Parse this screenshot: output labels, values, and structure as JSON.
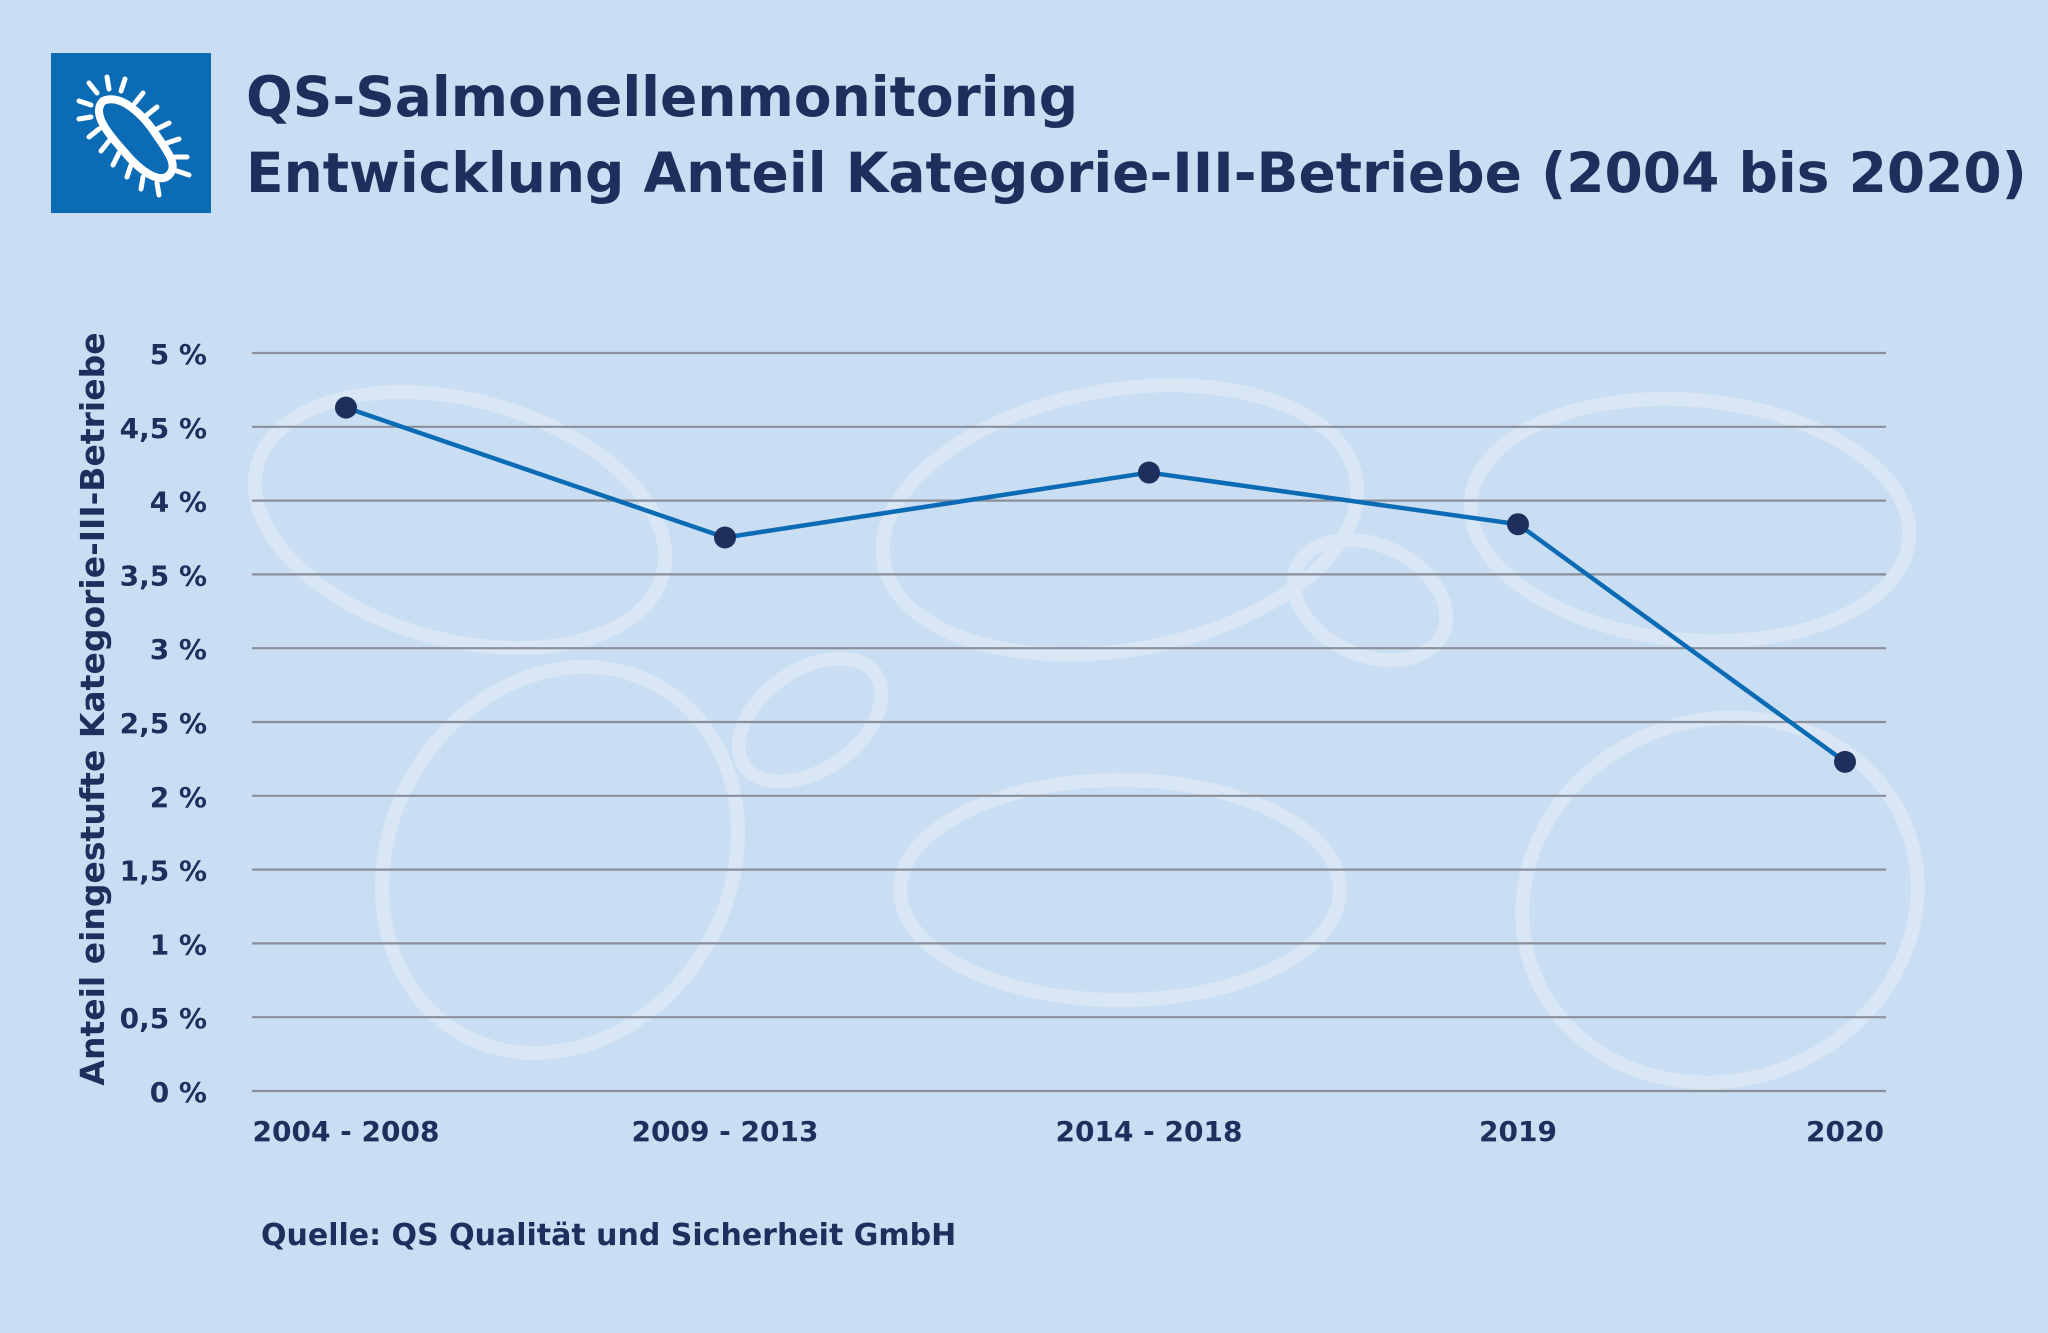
{
  "header": {
    "title_line1": "QS-Salmonellenmonitoring",
    "title_line2": "Entwicklung Anteil Kategorie-III-Betriebe (2004 bis 2020)",
    "logo_icon": "salmonella-bacterium-icon"
  },
  "colors": {
    "background": "#c9def2",
    "logo_background": "#0b6bb5",
    "line": "#0b6bb5",
    "marker": "#1d2f5c",
    "text": "#1d2f5c",
    "gridline": "#8a8f99"
  },
  "chart_data": {
    "type": "line",
    "title": "",
    "xlabel": "",
    "ylabel": "Anteil eingestufte Kategorie-III-Betriebe",
    "categories": [
      "2004 - 2008",
      "2009 - 2013",
      "2014 - 2018",
      "2019",
      "2020"
    ],
    "series": [
      {
        "values": [
          4.63,
          3.75,
          4.19,
          3.84,
          2.23
        ]
      }
    ],
    "ylim": [
      0,
      5
    ],
    "yticks": [
      0,
      0.5,
      1,
      1.5,
      2,
      2.5,
      3,
      3.5,
      4,
      4.5,
      5
    ],
    "ytick_labels": [
      "0 %",
      "0,5 %",
      "1 %",
      "1,5 %",
      "2 %",
      "2,5 %",
      "3 %",
      "3,5 %",
      "4 %",
      "4,5 %",
      "5 %"
    ],
    "grid": true,
    "legend": "none"
  },
  "footer": {
    "source": "Quelle: QS Qualität und Sicherheit GmbH"
  }
}
